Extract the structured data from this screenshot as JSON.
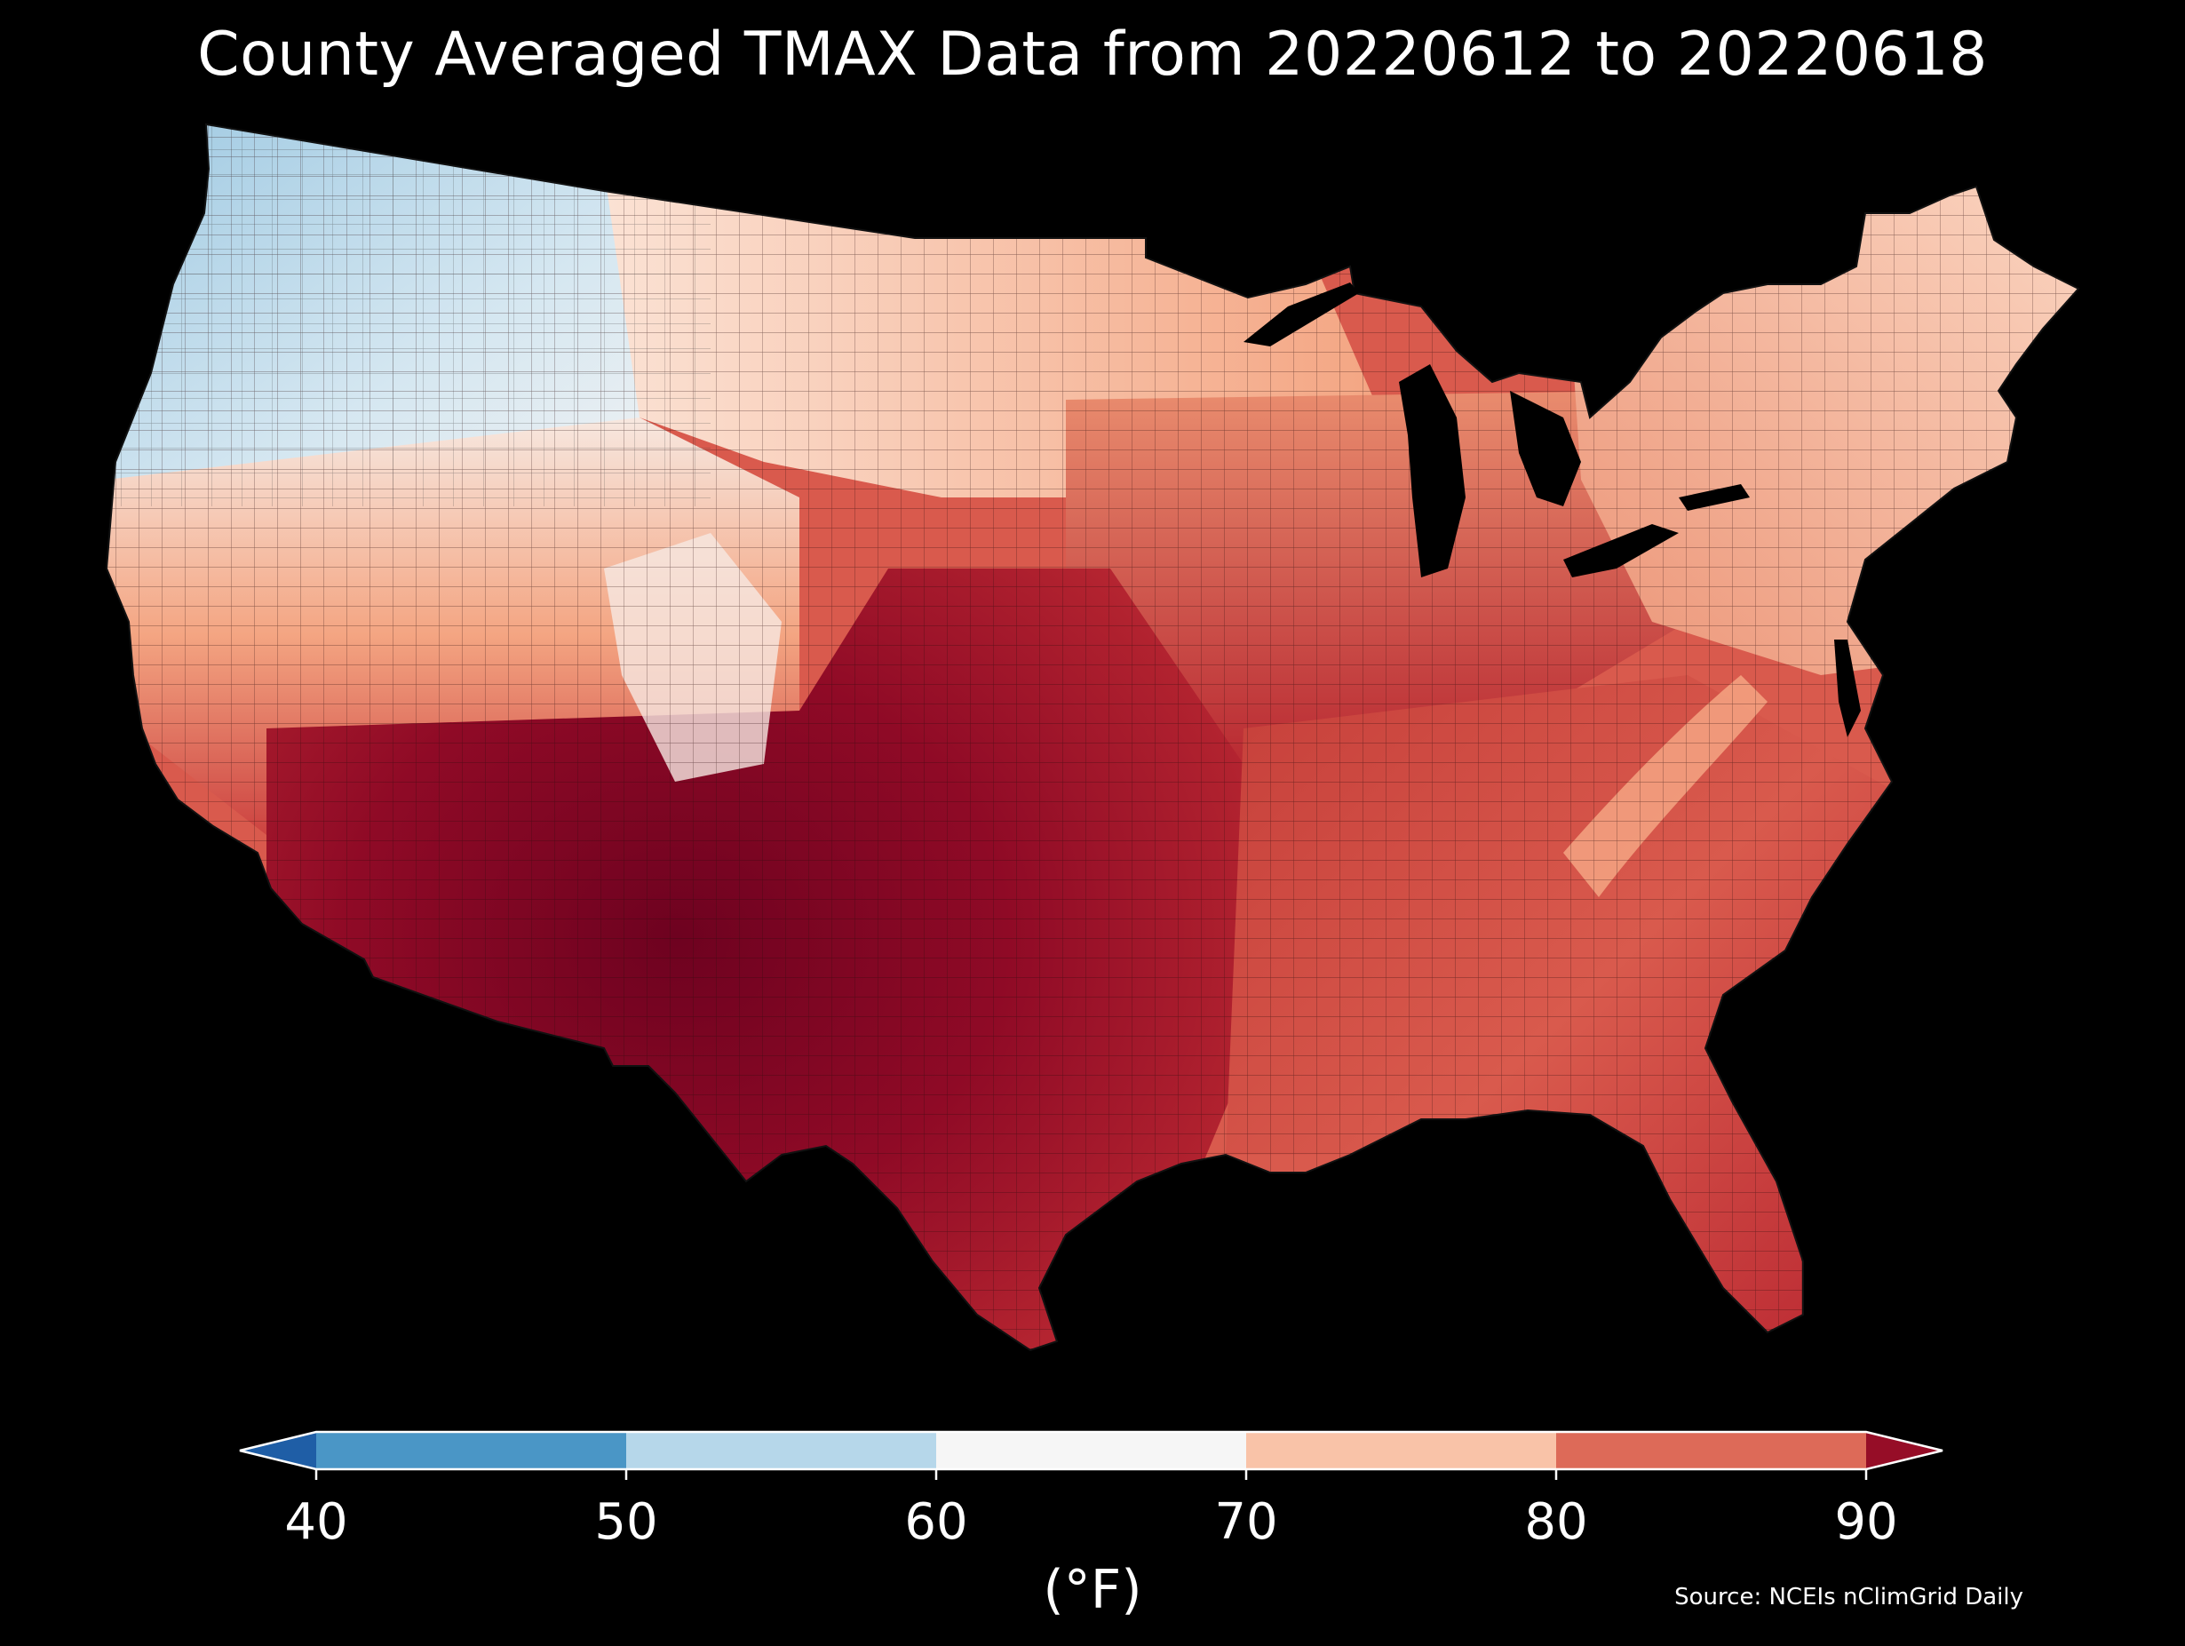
{
  "title": "County Averaged TMAX Data from 20220612 to 20220618",
  "colorbar": {
    "ticks": [
      40,
      50,
      60,
      70,
      80,
      90
    ],
    "tick_labels": [
      "40",
      "50",
      "60",
      "70",
      "80",
      "90"
    ],
    "units": "(°F)",
    "extend": "both",
    "bins": [
      {
        "from": 40,
        "to": 50,
        "color": "#4a96c6"
      },
      {
        "from": 50,
        "to": 60,
        "color": "#b6d7ea"
      },
      {
        "from": 60,
        "to": 70,
        "color": "#f6f6f6"
      },
      {
        "from": 70,
        "to": 80,
        "color": "#f9c3a8"
      },
      {
        "from": 80,
        "to": 90,
        "color": "#dd6a58"
      }
    ],
    "under_color": "#1f5ea6",
    "over_color": "#960d27"
  },
  "source": "Source: NCEIs nClimGrid Daily",
  "map": {
    "region": "Contiguous United States",
    "unit_level": "county",
    "variable": "TMAX",
    "background_color": "#000000",
    "border_color": "#222222",
    "regional_pattern": [
      {
        "region": "Pacific Northwest",
        "range": "50-60"
      },
      {
        "region": "Northern Rockies / Idaho / Montana",
        "range": "50-70"
      },
      {
        "region": "Northern Plains / Upper Midwest / Great Lakes",
        "range": "70-80"
      },
      {
        "region": "New England / Northeast",
        "range": "70-80"
      },
      {
        "region": "California coast",
        "range": "60-80"
      },
      {
        "region": "Great Basin / Colorado Rockies",
        "range": "70-90"
      },
      {
        "region": "Southern Plains / Texas / Oklahoma",
        "range": ">90"
      },
      {
        "region": "Desert Southwest / Arizona",
        "range": ">90"
      },
      {
        "region": "Southeast / Gulf Coast / Florida",
        "range": "80-90"
      },
      {
        "region": "Appalachians",
        "range": "70-80"
      }
    ]
  }
}
